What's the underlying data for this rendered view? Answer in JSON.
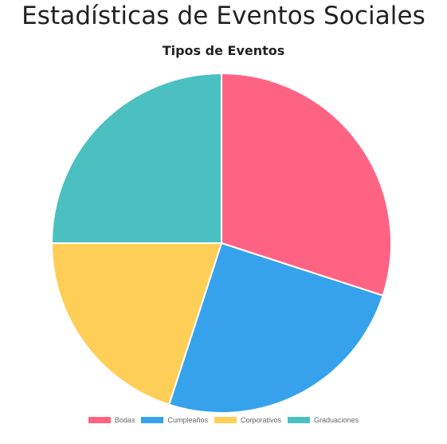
{
  "page": {
    "title": "Estadísticas de Eventos Sociales"
  },
  "chart_data": {
    "type": "pie",
    "title": "Tipos de Eventos",
    "categories": [
      "Bodas",
      "Cumpleaños",
      "Corporativos",
      "Graduaciones"
    ],
    "values": [
      30,
      25,
      20,
      25
    ],
    "colors": [
      "#FF6384",
      "#36A2EB",
      "#FFCE56",
      "#4BC0C0"
    ],
    "legend_position": "bottom"
  }
}
